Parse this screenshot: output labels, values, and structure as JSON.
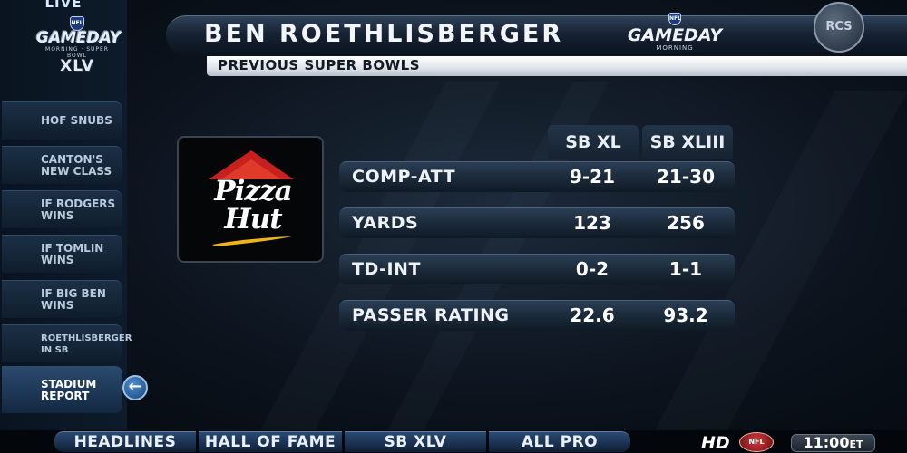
{
  "sidebar": {
    "live": "LIVE",
    "logo": {
      "line1": "GAMEDAY",
      "line2": "MORNING · SUPER BOWL",
      "line3": "XLV"
    },
    "items": [
      {
        "label": "HOF SNUBS"
      },
      {
        "label": "CANTON'S NEW CLASS"
      },
      {
        "label": "IF RODGERS WINS"
      },
      {
        "label": "IF TOMLIN WINS"
      },
      {
        "label": "IF BIG BEN WINS"
      },
      {
        "label": "ROETHLISBERGER IN SB"
      },
      {
        "label": "STADIUM REPORT"
      }
    ],
    "back_icon": "left-arrow-icon"
  },
  "header": {
    "player_name": "BEN ROETHLISBERGER",
    "subtitle": "PREVIOUS SUPER BOWLS",
    "logo": {
      "line1": "GAMEDAY",
      "line2": "MORNING"
    },
    "badge": "RCS"
  },
  "sponsor": {
    "brand_line1": "Pizza",
    "brand_line2": "Hut",
    "roof_color": "#c8201e",
    "swoosh_color": "#f2b316"
  },
  "stats": {
    "columns": [
      "SB XL",
      "SB XLIII"
    ],
    "rows": [
      {
        "label": "COMP-ATT",
        "values": [
          "9-21",
          "21-30"
        ]
      },
      {
        "label": "YARDS",
        "values": [
          "123",
          "256"
        ]
      },
      {
        "label": "TD-INT",
        "values": [
          "0-2",
          "1-1"
        ]
      },
      {
        "label": "PASSER RATING",
        "values": [
          "22.6",
          "93.2"
        ]
      }
    ]
  },
  "bottom": {
    "tabs": [
      "HEADLINES",
      "HALL OF FAME",
      "SB XLV",
      "ALL PRO"
    ],
    "hd": "HD",
    "nfl": "NFL",
    "time": "11:00",
    "tz": "ET"
  }
}
